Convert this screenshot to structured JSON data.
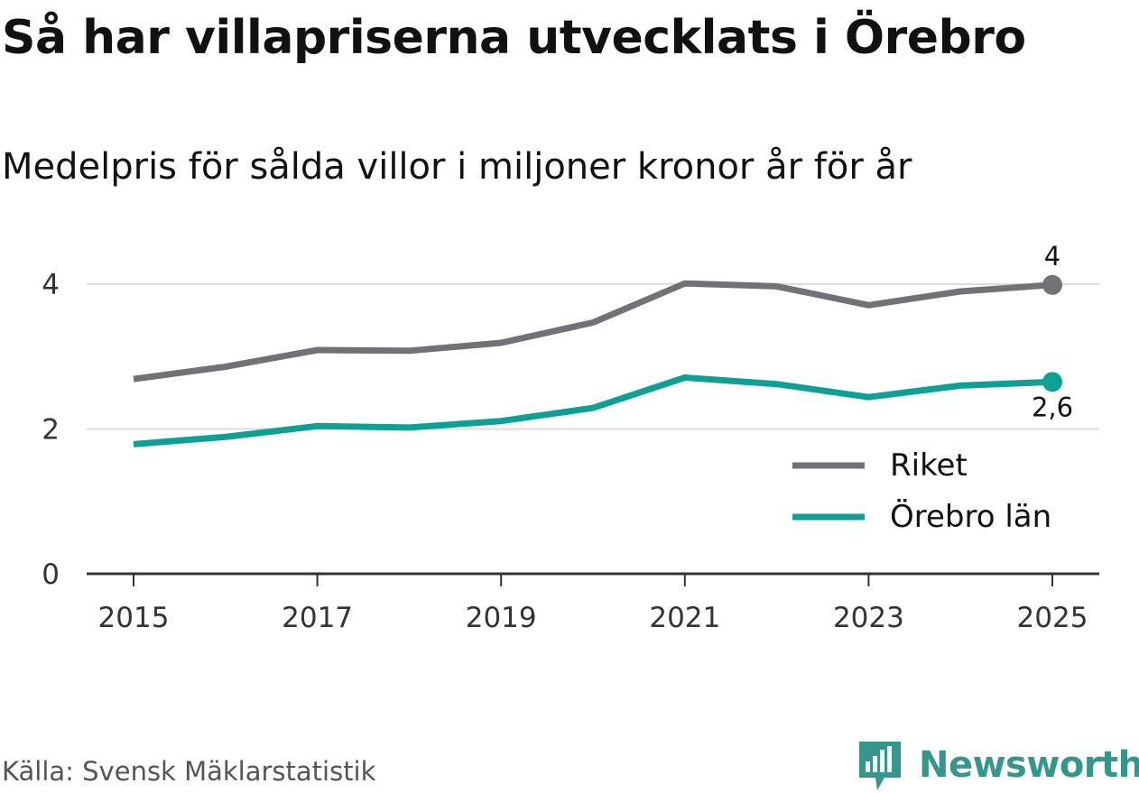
{
  "title": "Så har villapriserna utvecklats i Örebro",
  "subtitle": "Medelpris för sålda villor i miljoner kronor år för år",
  "source": "Källa: Svensk Mäklarstatistik",
  "brand": "Newsworthy",
  "colors": {
    "riket": "#727176",
    "orebro": "#0fa095",
    "grid": "#dddddd",
    "axis": "#333333",
    "brand": "#36958c"
  },
  "chart_data": {
    "type": "line",
    "title": "Så har villapriserna utvecklats i Örebro",
    "subtitle": "Medelpris för sålda villor i miljoner kronor år för år",
    "xlabel": "",
    "ylabel": "",
    "x": [
      2015,
      2016,
      2017,
      2018,
      2019,
      2020,
      2021,
      2022,
      2023,
      2024,
      2025
    ],
    "x_ticks": [
      "2015",
      "2017",
      "2019",
      "2021",
      "2023",
      "2025"
    ],
    "y_ticks": [
      "0",
      "2",
      "4"
    ],
    "ylim": [
      0,
      4.2
    ],
    "grid": true,
    "legend_position": "right",
    "series": [
      {
        "name": "Riket",
        "color": "#727176",
        "values": [
          2.69,
          2.86,
          3.09,
          3.08,
          3.19,
          3.47,
          4.01,
          3.97,
          3.71,
          3.9,
          3.99
        ],
        "end_label": "4"
      },
      {
        "name": "Örebro län",
        "color": "#0fa095",
        "values": [
          1.79,
          1.89,
          2.04,
          2.02,
          2.11,
          2.29,
          2.71,
          2.62,
          2.44,
          2.6,
          2.65
        ],
        "end_label": "2,6"
      }
    ]
  }
}
